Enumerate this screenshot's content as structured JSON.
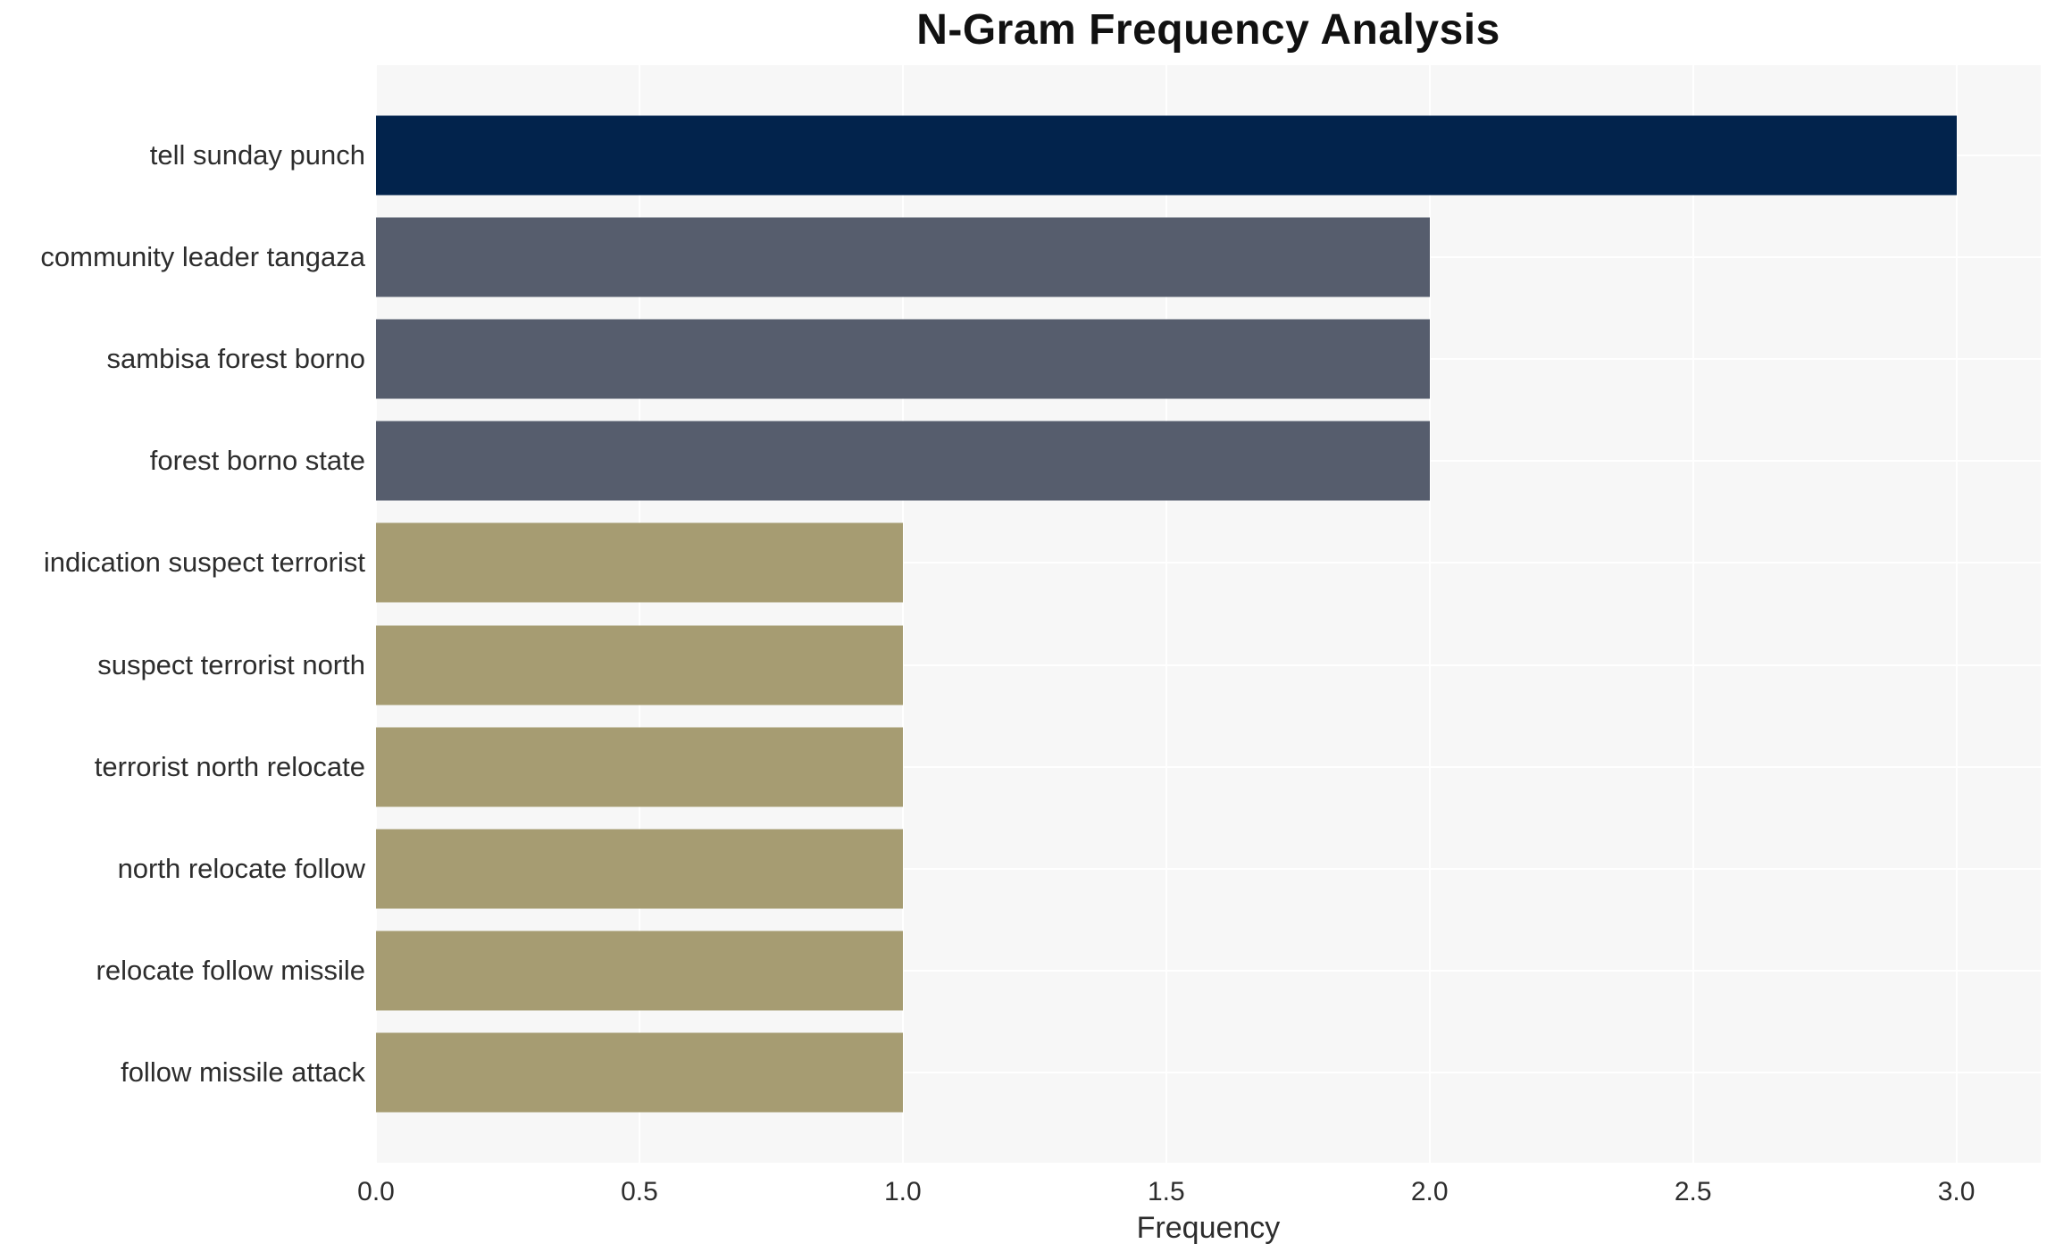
{
  "chart_data": {
    "type": "bar",
    "orientation": "horizontal",
    "title": "N-Gram Frequency Analysis",
    "xlabel": "Frequency",
    "ylabel": "",
    "categories": [
      "tell sunday punch",
      "community leader tangaza",
      "sambisa forest borno",
      "forest borno state",
      "indication suspect terrorist",
      "suspect terrorist north",
      "terrorist north relocate",
      "north relocate follow",
      "relocate follow missile",
      "follow missile attack"
    ],
    "values": [
      3,
      2,
      2,
      2,
      1,
      1,
      1,
      1,
      1,
      1
    ],
    "bar_colors": [
      "#02234C",
      "#565D6D",
      "#565D6D",
      "#565D6D",
      "#A69C72",
      "#A69C72",
      "#A69C72",
      "#A69C72",
      "#A69C72",
      "#A69C72"
    ],
    "xlim": [
      0,
      3.16
    ],
    "xticks": [
      0,
      0.5,
      1,
      1.5,
      2,
      2.5,
      3
    ],
    "xtick_labels": [
      "0.0",
      "0.5",
      "1.0",
      "1.5",
      "2.0",
      "2.5",
      "3.0"
    ],
    "grid": true,
    "legend_visible": false,
    "plot_bgcolor": "#F7F7F7",
    "gridline_color": "#FFFFFF",
    "text_color": "#2D2D2D"
  }
}
